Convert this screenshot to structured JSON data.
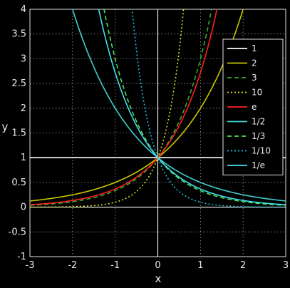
{
  "chart_data": {
    "type": "line",
    "title": "",
    "xlabel": "x",
    "ylabel": "y",
    "xlim": [
      -3,
      3
    ],
    "ylim": [
      -1,
      4
    ],
    "x_ticks": [
      "-3",
      "-2",
      "-1",
      "0",
      "1",
      "2",
      "3"
    ],
    "y_ticks": [
      "-1",
      "-0.5",
      "0",
      "0.5",
      "1",
      "1.5",
      "2",
      "2.5",
      "3",
      "3.5",
      "4"
    ],
    "grid": true,
    "background": "#000000",
    "legend_position": "right",
    "series": [
      {
        "name": "1",
        "base": 1,
        "color": "#ffffff",
        "style": "solid"
      },
      {
        "name": "2",
        "base": 2,
        "color": "#c8c800",
        "style": "solid"
      },
      {
        "name": "3",
        "base": 3,
        "color": "#39a839",
        "style": "dashed"
      },
      {
        "name": "10",
        "base": 10,
        "color": "#e0e020",
        "style": "dotted"
      },
      {
        "name": "e",
        "base": 2.718281828,
        "color": "#ff2020",
        "style": "solid"
      },
      {
        "name": "1/2",
        "base": 0.5,
        "color": "#40d0d0",
        "style": "solid"
      },
      {
        "name": "1/3",
        "base": 0.333333333,
        "color": "#50e050",
        "style": "dashed"
      },
      {
        "name": "1/10",
        "base": 0.1,
        "color": "#20c0e0",
        "style": "dotted"
      },
      {
        "name": "1/e",
        "base": 0.367879441,
        "color": "#40e0f0",
        "style": "solid"
      }
    ],
    "legend_labels": [
      "1",
      "2",
      "3",
      "10",
      "e",
      "1/2",
      "1/3",
      "1/10",
      "1/e"
    ]
  }
}
